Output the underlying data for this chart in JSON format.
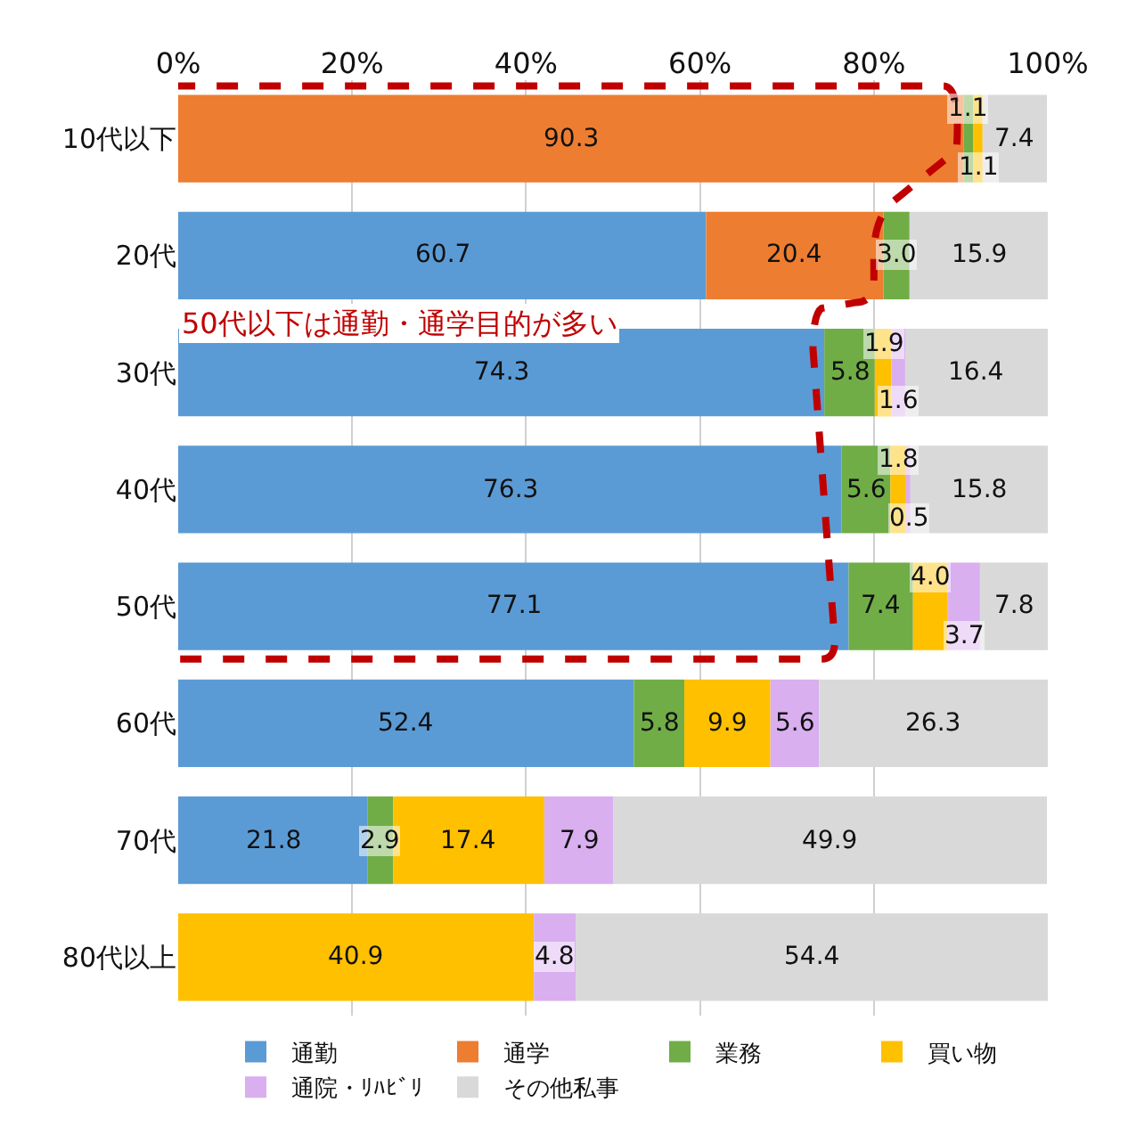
{
  "chart_data": {
    "type": "bar",
    "orientation": "horizontal",
    "stacked": true,
    "categories": [
      "10代以下",
      "20代",
      "30代",
      "40代",
      "50代",
      "60代",
      "70代",
      "80代以上"
    ],
    "series": [
      {
        "name": "通勤",
        "color": "#5b9bd5",
        "values": [
          null,
          60.7,
          74.3,
          76.3,
          77.1,
          52.4,
          21.8,
          null
        ],
        "value_labels": [
          null,
          "60.7",
          "74.3",
          "76.3",
          "77.1",
          "52.4",
          "21.8",
          null
        ]
      },
      {
        "name": "通学",
        "color": "#ed7d31",
        "values": [
          90.3,
          20.4,
          null,
          null,
          null,
          null,
          null,
          null
        ],
        "value_labels": [
          "90.3",
          "20.4",
          null,
          null,
          null,
          null,
          null,
          null
        ]
      },
      {
        "name": "業務",
        "color": "#70ad47",
        "values": [
          1.1,
          3.0,
          5.8,
          5.6,
          7.4,
          5.8,
          2.9,
          null
        ],
        "value_labels": [
          "1.1",
          "3.0",
          "5.8",
          "5.6",
          "7.4",
          "5.8",
          "2.9",
          null
        ]
      },
      {
        "name": "買い物",
        "color": "#ffc000",
        "values": [
          1.1,
          null,
          1.9,
          1.8,
          4.0,
          9.9,
          17.4,
          40.9
        ],
        "value_labels": [
          "1.1",
          null,
          "1.9",
          "1.8",
          "4.0",
          "9.9",
          "17.4",
          "40.9"
        ]
      },
      {
        "name": "通院・ﾘﾊﾋﾞﾘ",
        "color": "#d9aff0",
        "values": [
          null,
          null,
          1.6,
          0.5,
          3.7,
          5.6,
          7.9,
          4.8
        ],
        "value_labels": [
          null,
          null,
          "1.6",
          "0.5",
          "3.7",
          "5.6",
          "7.9",
          "4.8"
        ]
      },
      {
        "name": "その他私事",
        "color": "#d9d9d9",
        "values": [
          7.4,
          15.9,
          16.4,
          15.8,
          7.8,
          26.3,
          49.9,
          54.4
        ],
        "value_labels": [
          "7.4",
          "15.9",
          "16.4",
          "15.8",
          "7.8",
          "26.3",
          "49.9",
          "54.4"
        ]
      }
    ],
    "xlim": [
      0,
      100
    ],
    "xticks": [
      {
        "value": 0,
        "label": "0%"
      },
      {
        "value": 20,
        "label": "20%"
      },
      {
        "value": 40,
        "label": "40%"
      },
      {
        "value": 60,
        "label": "60%"
      },
      {
        "value": 80,
        "label": "80%"
      },
      {
        "value": 100,
        "label": "100%"
      }
    ],
    "grid": "x",
    "legend": "bottom",
    "annotations": [
      "50代以下は通勤・通学目的が多い"
    ]
  }
}
